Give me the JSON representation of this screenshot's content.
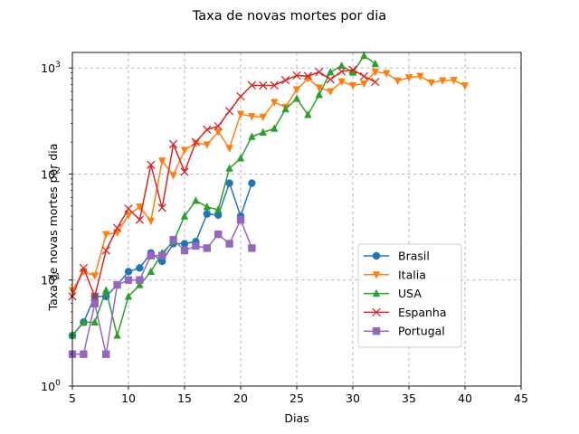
{
  "chart_data": {
    "type": "line",
    "title": "Taxa de novas mortes por dia",
    "xlabel": "Dias",
    "ylabel": "Taxa de novas mortes por dia",
    "xlim": [
      5,
      45
    ],
    "ylim": [
      1,
      1400
    ],
    "yscale": "log",
    "xticks": [
      5,
      10,
      15,
      20,
      25,
      30,
      35,
      40,
      45
    ],
    "yticks": [
      {
        "value": 1,
        "base": "10",
        "exp": "0"
      },
      {
        "value": 10,
        "base": "10",
        "exp": "1"
      },
      {
        "value": 100,
        "base": "10",
        "exp": "2"
      },
      {
        "value": 1000,
        "base": "10",
        "exp": "3"
      }
    ],
    "grid": true,
    "legend_position": "center-right",
    "series": [
      {
        "name": "Brasil",
        "color": "#1f77b4",
        "marker": "circle",
        "x": [
          5,
          6,
          7,
          8,
          9,
          10,
          11,
          12,
          13,
          14,
          15,
          16,
          17,
          18,
          19,
          20,
          21
        ],
        "y": [
          3,
          4,
          7,
          7,
          9,
          12,
          13,
          18,
          15,
          22,
          22,
          23,
          42,
          41,
          82,
          40,
          82
        ]
      },
      {
        "name": "Italia",
        "color": "#ff7f0e",
        "marker": "triangle-down",
        "x": [
          5,
          6,
          7,
          8,
          9,
          10,
          11,
          12,
          13,
          14,
          15,
          16,
          17,
          18,
          19,
          20,
          21,
          22,
          23,
          24,
          25,
          26,
          27,
          28,
          29,
          30,
          31,
          32,
          33,
          34,
          35,
          36,
          37,
          38,
          39,
          40
        ],
        "y": [
          8,
          12,
          11,
          27,
          28,
          41,
          49,
          36,
          133,
          97,
          168,
          196,
          189,
          250,
          175,
          368,
          349,
          345,
          475,
          427,
          627,
          793,
          651,
          601,
          743,
          683,
          712,
          919,
          889,
          756,
          812,
          837,
          727,
          760,
          766,
          681
        ]
      },
      {
        "name": "USA",
        "color": "#2ca02c",
        "marker": "triangle-up",
        "x": [
          5,
          6,
          7,
          8,
          9,
          10,
          11,
          12,
          13,
          14,
          15,
          16,
          17,
          18,
          19,
          20,
          21,
          22,
          23,
          24,
          25,
          26,
          27,
          28,
          29,
          30,
          31,
          32
        ],
        "y": [
          3,
          4,
          4,
          8,
          3,
          7,
          9,
          12,
          18,
          23,
          40,
          56,
          49,
          46,
          113,
          141,
          225,
          247,
          268,
          409,
          514,
          362,
          559,
          912,
          1049,
          906,
          1303,
          1091
        ]
      },
      {
        "name": "Espanha",
        "color": "#d62728",
        "marker": "x",
        "x": [
          5,
          6,
          7,
          8,
          9,
          10,
          11,
          12,
          13,
          14,
          15,
          16,
          17,
          18,
          19,
          20,
          21,
          22,
          23,
          24,
          25,
          26,
          27,
          28,
          29,
          30,
          31,
          32
        ],
        "y": [
          7,
          13,
          7,
          19,
          31,
          47,
          37,
          122,
          48,
          191,
          105,
          200,
          262,
          282,
          392,
          539,
          686,
          683,
          686,
          766,
          849,
          838,
          916,
          780,
          925,
          961,
          834,
          738
        ]
      },
      {
        "name": "Portugal",
        "color": "#9467bd",
        "marker": "square",
        "x": [
          5,
          6,
          7,
          8,
          9,
          10,
          11,
          12,
          13,
          14,
          15,
          16,
          17,
          18,
          19,
          20,
          21
        ],
        "y": [
          2,
          2,
          6,
          2,
          9,
          10,
          10,
          17,
          17,
          24,
          19,
          21,
          20,
          27,
          22,
          37,
          20
        ]
      }
    ]
  }
}
